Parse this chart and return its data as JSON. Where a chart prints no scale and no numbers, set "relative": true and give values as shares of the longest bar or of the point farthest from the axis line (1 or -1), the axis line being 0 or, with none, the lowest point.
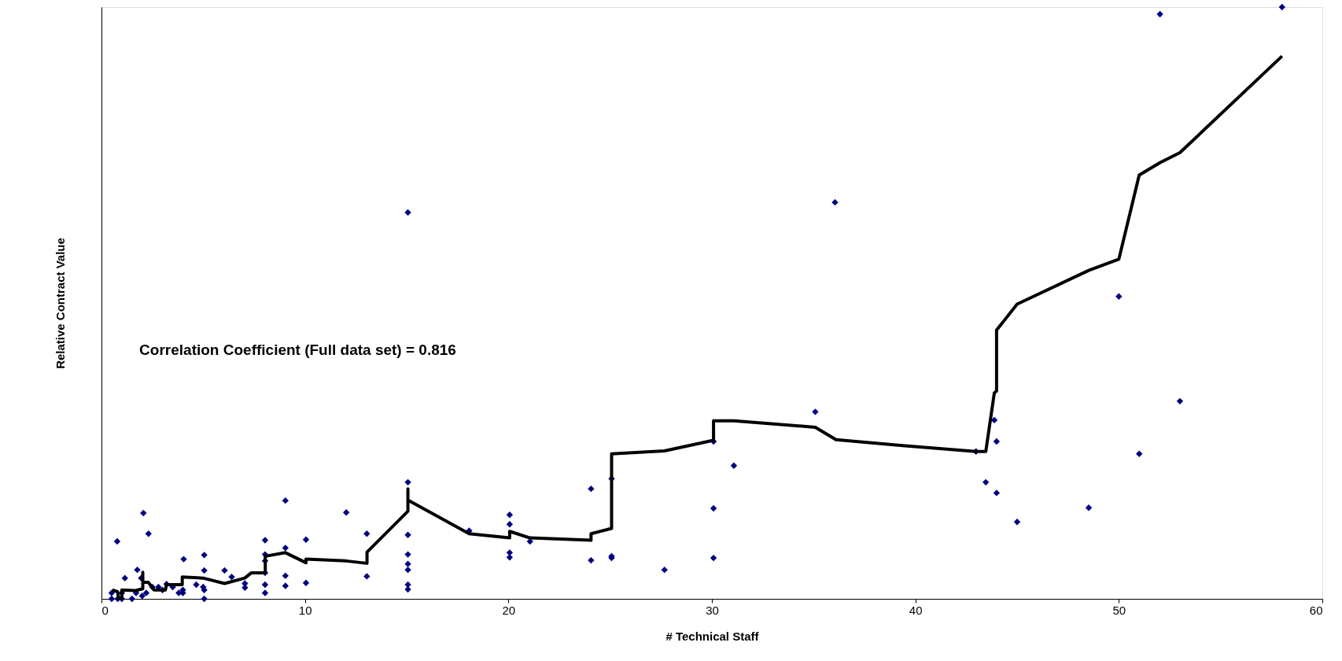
{
  "chart_data": {
    "type": "scatter",
    "relative": true,
    "xlabel": "# Technical Staff",
    "ylabel": "Relative Contract Value",
    "annotations": [
      "Correlation Coefficient (Full data set) = 0.816"
    ],
    "xlim": [
      0,
      60
    ],
    "xticks": [
      0,
      10,
      20,
      30,
      40,
      50,
      60
    ],
    "tick_labels": "x",
    "grid": false,
    "series": [
      {
        "color": "#000080",
        "marker": "diamond",
        "x": [
          0.5,
          0.5,
          0.8,
          0.77,
          1,
          1,
          1.15,
          1.5,
          1.7,
          1.76,
          1.95,
          2,
          2.06,
          2.2,
          2.31,
          2.5,
          2.8,
          3,
          3.2,
          3.5,
          3.8,
          4,
          4,
          4.04,
          4.66,
          5.05,
          5.05,
          5.05,
          5.05,
          5,
          6.05,
          6.4,
          7.05,
          7.05,
          8.04,
          8.04,
          8.04,
          8.04,
          8.04,
          8.04,
          9.04,
          9.04,
          9.04,
          9.04,
          10.05,
          10.05,
          12.03,
          13.04,
          13.04,
          15.06,
          15.06,
          15.06,
          15.06,
          15.06,
          15.06,
          15.06,
          15.06,
          18.07,
          20.06,
          20.06,
          20.06,
          20.06,
          21.06,
          24.06,
          24.06,
          25.07,
          25.07,
          25.07,
          27.67,
          30.08,
          30.08,
          30.08,
          31.08,
          35.08,
          36.05,
          42.98,
          43.46,
          43.88,
          43.99,
          43.99,
          45.0,
          48.52,
          50.0,
          51.0,
          52.02,
          53.0,
          58.02
        ],
        "values": [
          0.01,
          0.0,
          0.0,
          0.097,
          0.01,
          0.0,
          0.035,
          0.0,
          0.01,
          0.049,
          0.035,
          0.005,
          0.145,
          0.01,
          0.11,
          0.02,
          0.02,
          0.015,
          0.025,
          0.02,
          0.01,
          0.015,
          0.01,
          0.067,
          0.024,
          0.074,
          0.048,
          0.015,
          0.0,
          0.02,
          0.048,
          0.037,
          0.026,
          0.019,
          0.099,
          0.075,
          0.064,
          0.044,
          0.024,
          0.01,
          0.166,
          0.086,
          0.039,
          0.022,
          0.1,
          0.027,
          0.146,
          0.11,
          0.038,
          0.197,
          0.108,
          0.075,
          0.059,
          0.049,
          0.024,
          0.016,
          0.653,
          0.115,
          0.142,
          0.126,
          0.078,
          0.07,
          0.097,
          0.186,
          0.065,
          0.203,
          0.072,
          0.069,
          0.049,
          0.266,
          0.153,
          0.069,
          0.225,
          0.316,
          0.67,
          0.249,
          0.197,
          0.302,
          0.266,
          0.179,
          0.13,
          0.154,
          0.511,
          0.245,
          0.988,
          0.334,
          1.0
        ]
      },
      {
        "type": "line",
        "color": "#000000",
        "line_style": "solid",
        "marker": "none",
        "x": [
          0.53,
          0.79,
          0.84,
          1.0,
          1.0,
          1.67,
          2.03,
          2.03,
          2.03,
          2.3,
          2.59,
          3.14,
          3.2,
          3.97,
          3.97,
          5.0,
          6.05,
          7.04,
          7.37,
          8.05,
          8.05,
          9.04,
          10.05,
          10.05,
          12.03,
          13.05,
          13.05,
          15.06,
          15.06,
          15.06,
          18.07,
          20.06,
          20.06,
          21.06,
          24.06,
          24.06,
          25.07,
          25.07,
          27.67,
          30.08,
          30.08,
          31.08,
          35.08,
          36.1,
          39.37,
          42.98,
          43.46,
          43.88,
          43.99,
          43.99,
          45.0,
          48.52,
          50.0,
          51.0,
          52.02,
          53.0,
          58.02
        ],
        "values": [
          0.015,
          0.012,
          0.001,
          0.001,
          0.015,
          0.014,
          0.017,
          0.045,
          0.028,
          0.028,
          0.015,
          0.015,
          0.024,
          0.024,
          0.037,
          0.035,
          0.026,
          0.035,
          0.044,
          0.044,
          0.072,
          0.078,
          0.061,
          0.067,
          0.064,
          0.06,
          0.079,
          0.148,
          0.186,
          0.167,
          0.11,
          0.103,
          0.114,
          0.103,
          0.099,
          0.11,
          0.119,
          0.245,
          0.25,
          0.268,
          0.301,
          0.301,
          0.29,
          0.269,
          0.259,
          0.249,
          0.249,
          0.348,
          0.351,
          0.454,
          0.498,
          0.555,
          0.574,
          0.716,
          0.737,
          0.754,
          0.917
        ]
      }
    ]
  }
}
